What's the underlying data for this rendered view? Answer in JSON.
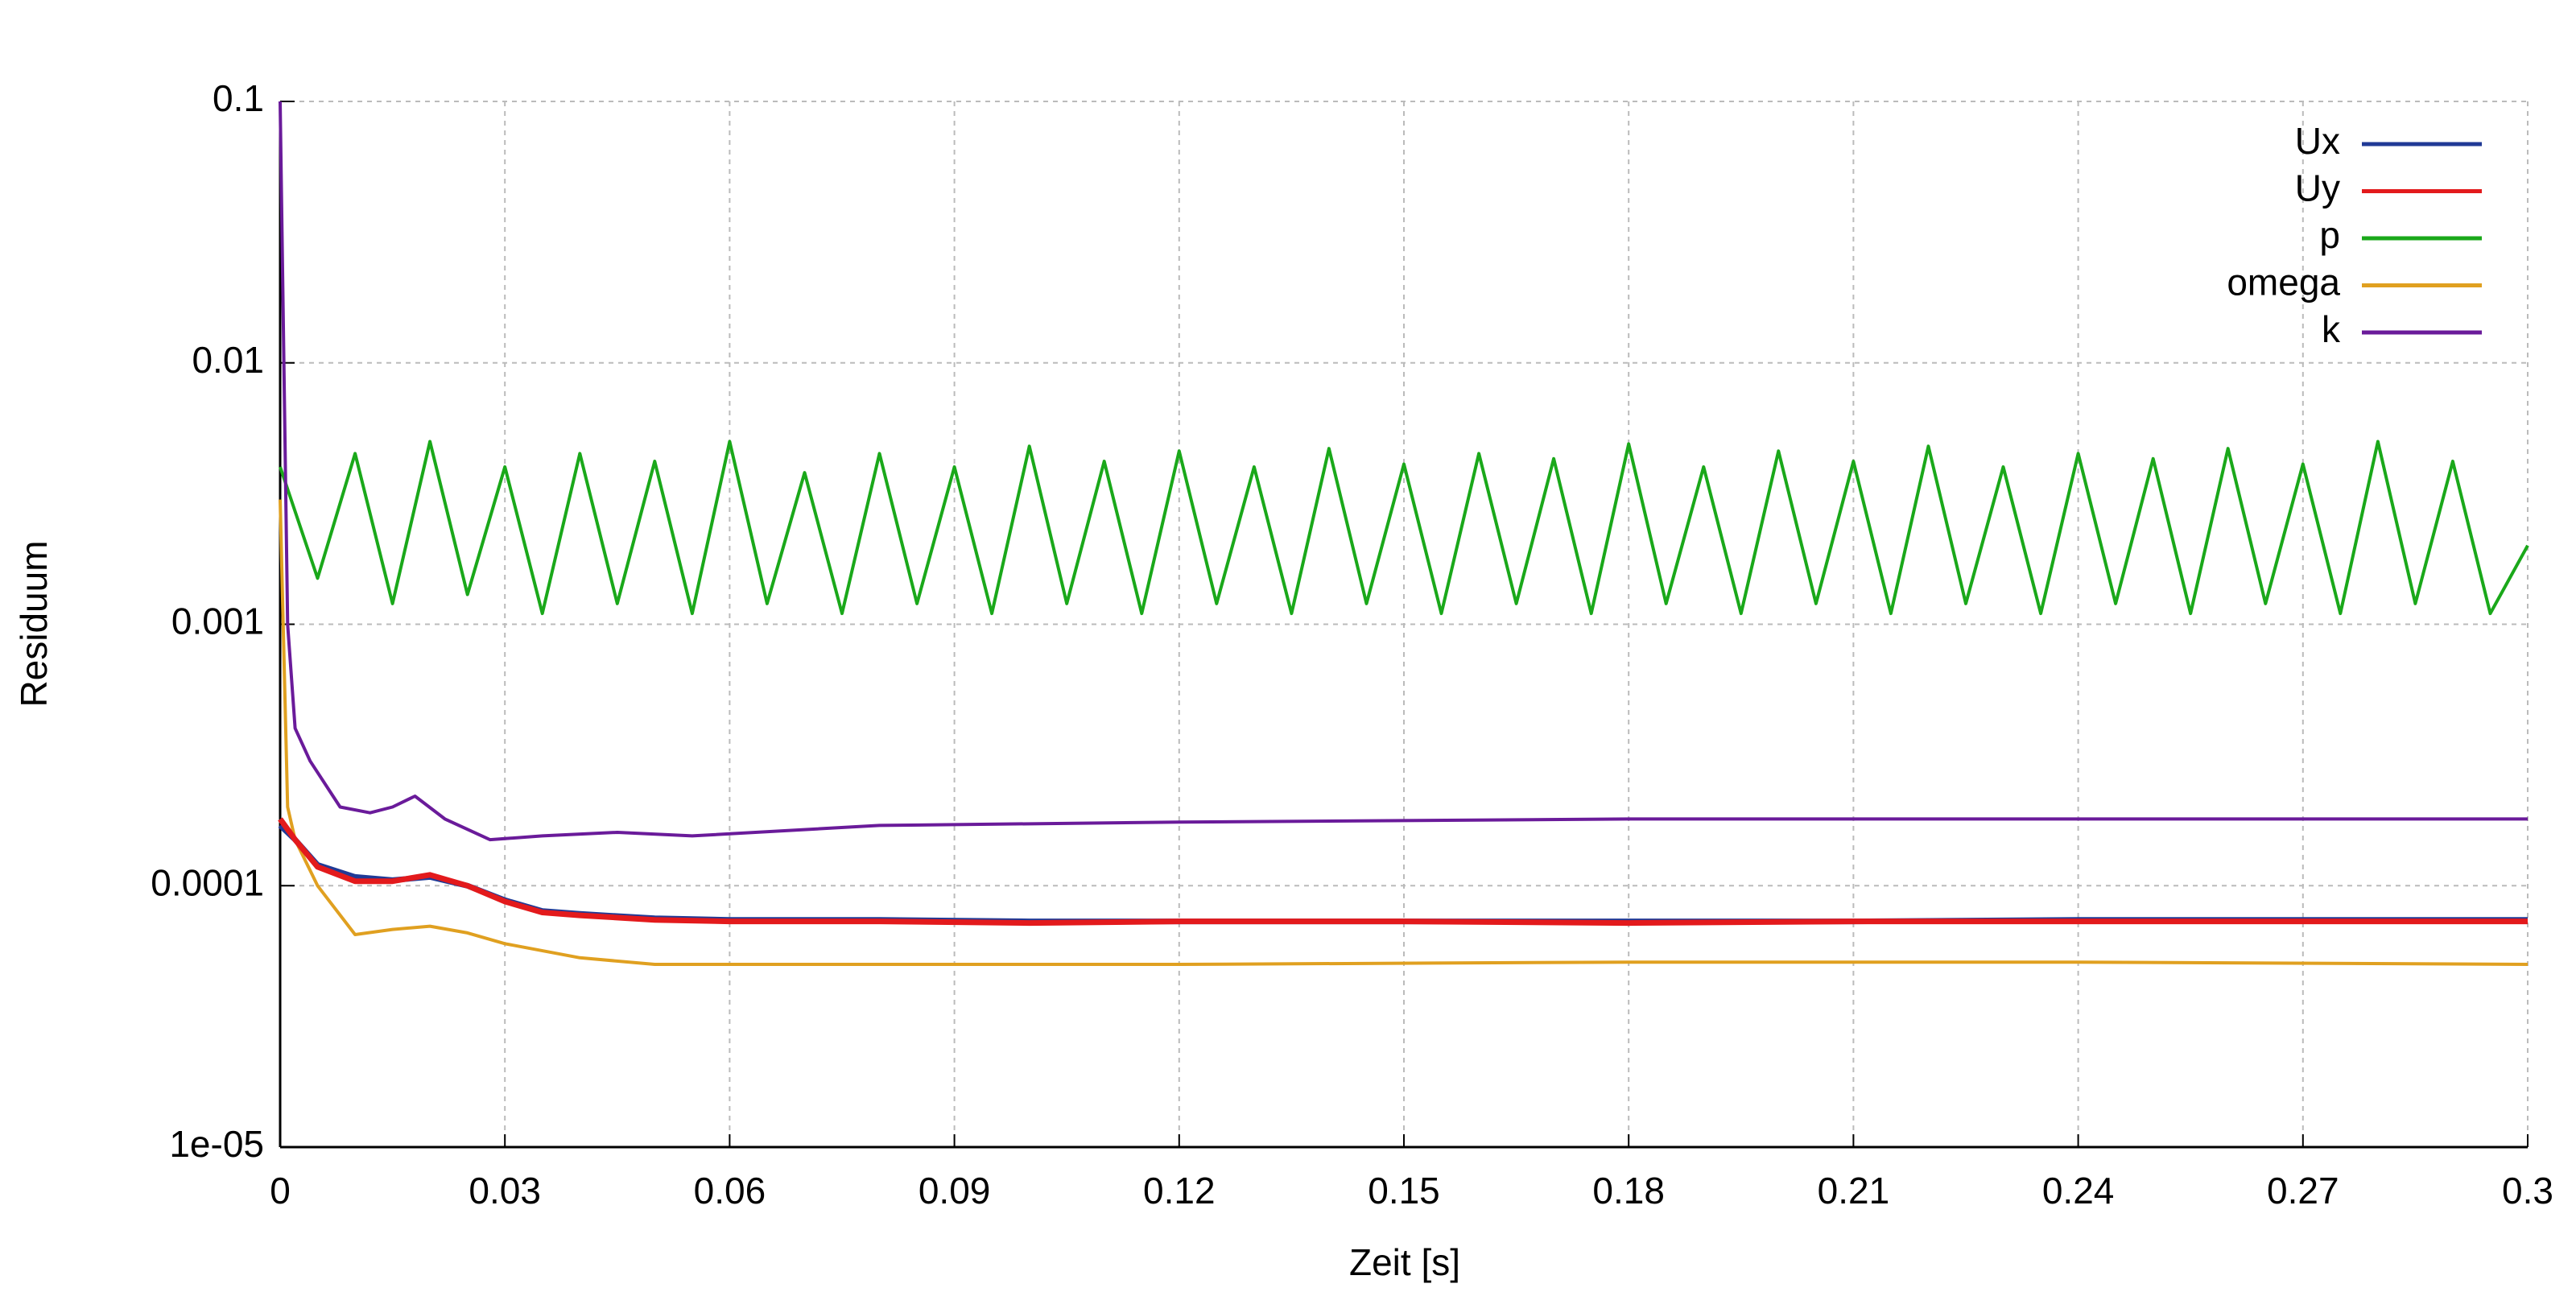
{
  "chart_data": {
    "type": "line",
    "x_label": "Zeit [s]",
    "y_label": "Residuum",
    "log_scale": "y",
    "grid": true,
    "legend": "top-right",
    "xlim": [
      0,
      0.3
    ],
    "xticks": [
      0,
      0.03,
      0.06,
      0.09,
      0.12,
      0.15,
      0.18,
      0.21,
      0.24,
      0.27,
      0.3
    ],
    "ylim": [
      1e-05,
      0.1
    ],
    "yticks": [
      {
        "value": 1e-05,
        "label": "1e-05"
      },
      0.0001,
      0.001,
      0.01,
      0.1
    ],
    "series": [
      {
        "name": "Ux",
        "color": "#203a96",
        "x": [
          0,
          0.002,
          0.005,
          0.01,
          0.015,
          0.02,
          0.025,
          0.03,
          0.035,
          0.04,
          0.05,
          0.06,
          0.08,
          0.1,
          0.12,
          0.15,
          0.18,
          0.21,
          0.24,
          0.27,
          0.3
        ],
        "values": [
          0.00017,
          0.00015,
          0.00012,
          0.000108,
          0.000105,
          0.000108,
          0.0001,
          8.8e-05,
          8e-05,
          7.8e-05,
          7.5e-05,
          7.4e-05,
          7.4e-05,
          7.3e-05,
          7.3e-05,
          7.3e-05,
          7.3e-05,
          7.3e-05,
          7.4e-05,
          7.4e-05,
          7.4e-05
        ]
      },
      {
        "name": "Uy",
        "color": "#e31a1c",
        "x": [
          0,
          0.002,
          0.005,
          0.01,
          0.015,
          0.02,
          0.025,
          0.03,
          0.035,
          0.04,
          0.05,
          0.06,
          0.08,
          0.1,
          0.12,
          0.15,
          0.18,
          0.21,
          0.24,
          0.27,
          0.3
        ],
        "values": [
          0.00018,
          0.00015,
          0.000118,
          0.000104,
          0.000104,
          0.00011,
          0.0001,
          8.7e-05,
          7.9e-05,
          7.7e-05,
          7.4e-05,
          7.3e-05,
          7.3e-05,
          7.2e-05,
          7.3e-05,
          7.3e-05,
          7.2e-05,
          7.3e-05,
          7.3e-05,
          7.3e-05,
          7.3e-05
        ]
      },
      {
        "name": "p",
        "color": "#1aa81a",
        "x": [
          0,
          0.005,
          0.01,
          0.015,
          0.02,
          0.025,
          0.03,
          0.035,
          0.04,
          0.045,
          0.05,
          0.055,
          0.06,
          0.065,
          0.07,
          0.075,
          0.08,
          0.085,
          0.09,
          0.095,
          0.1,
          0.105,
          0.11,
          0.115,
          0.12,
          0.125,
          0.13,
          0.135,
          0.14,
          0.145,
          0.15,
          0.155,
          0.16,
          0.165,
          0.17,
          0.175,
          0.18,
          0.185,
          0.19,
          0.195,
          0.2,
          0.205,
          0.21,
          0.215,
          0.22,
          0.225,
          0.23,
          0.235,
          0.24,
          0.245,
          0.25,
          0.255,
          0.26,
          0.265,
          0.27,
          0.275,
          0.28,
          0.285,
          0.29,
          0.295,
          0.3
        ],
        "values": [
          0.004,
          0.0015,
          0.0045,
          0.0012,
          0.005,
          0.0013,
          0.004,
          0.0011,
          0.0045,
          0.0012,
          0.0042,
          0.0011,
          0.005,
          0.0012,
          0.0038,
          0.0011,
          0.0045,
          0.0012,
          0.004,
          0.0011,
          0.0048,
          0.0012,
          0.0042,
          0.0011,
          0.0046,
          0.0012,
          0.004,
          0.0011,
          0.0047,
          0.0012,
          0.0041,
          0.0011,
          0.0045,
          0.0012,
          0.0043,
          0.0011,
          0.0049,
          0.0012,
          0.004,
          0.0011,
          0.0046,
          0.0012,
          0.0042,
          0.0011,
          0.0048,
          0.0012,
          0.004,
          0.0011,
          0.0045,
          0.0012,
          0.0043,
          0.0011,
          0.0047,
          0.0012,
          0.0041,
          0.0011,
          0.005,
          0.0012,
          0.0042,
          0.0011,
          0.002
        ]
      },
      {
        "name": "omega",
        "color": "#e0a020",
        "x": [
          0,
          0.001,
          0.002,
          0.005,
          0.01,
          0.015,
          0.02,
          0.025,
          0.03,
          0.04,
          0.05,
          0.08,
          0.12,
          0.18,
          0.24,
          0.3
        ],
        "values": [
          0.003,
          0.0002,
          0.00015,
          0.0001,
          6.5e-05,
          6.8e-05,
          7e-05,
          6.6e-05,
          6e-05,
          5.3e-05,
          5e-05,
          5e-05,
          5e-05,
          5.1e-05,
          5.1e-05,
          5e-05
        ]
      },
      {
        "name": "k",
        "color": "#6a1b9a",
        "x": [
          0,
          0.001,
          0.002,
          0.004,
          0.008,
          0.012,
          0.015,
          0.018,
          0.022,
          0.028,
          0.035,
          0.045,
          0.055,
          0.08,
          0.12,
          0.18,
          0.24,
          0.3
        ],
        "values": [
          0.1,
          0.001,
          0.0004,
          0.0003,
          0.0002,
          0.00019,
          0.0002,
          0.00022,
          0.00018,
          0.00015,
          0.000155,
          0.00016,
          0.000155,
          0.00017,
          0.000175,
          0.00018,
          0.00018,
          0.00018
        ]
      }
    ]
  }
}
